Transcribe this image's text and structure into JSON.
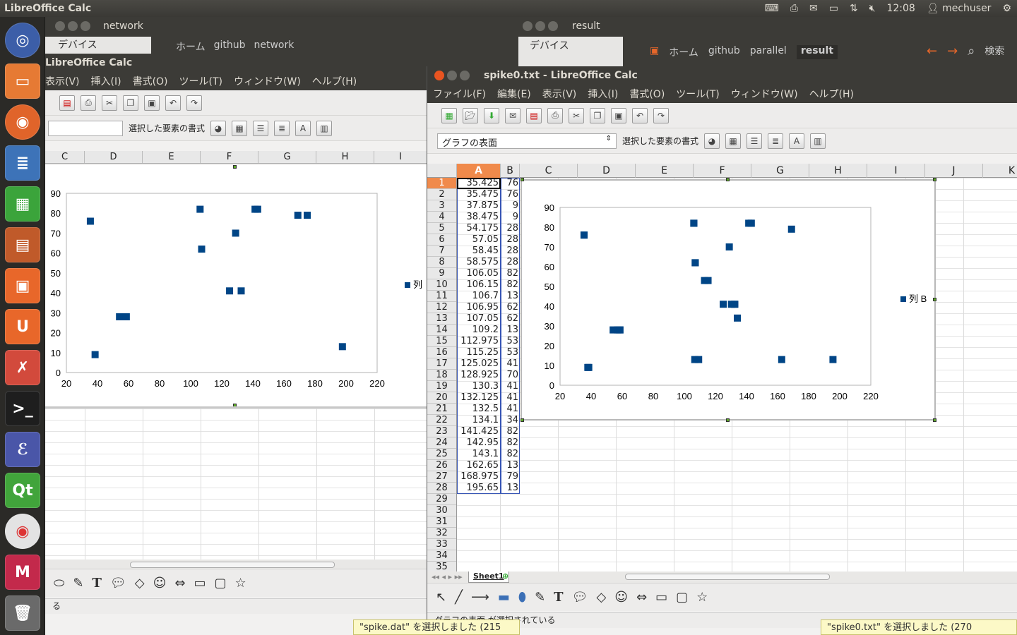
{
  "panel": {
    "app_title": "LibreOffice Calc",
    "time": "12:08",
    "user": "mechuser"
  },
  "bg_windows": {
    "network": {
      "title": "network",
      "sidebar": "デバイス",
      "crumbs": [
        "ホーム",
        "github",
        "network"
      ]
    },
    "result": {
      "title": "result",
      "sidebar": "デバイス",
      "crumbs": [
        "ホーム",
        "github",
        "parallel",
        "result"
      ],
      "search": "検索"
    }
  },
  "left_calc": {
    "title": "LibreOffice Calc",
    "menu": [
      "表示(V)",
      "挿入(I)",
      "書式(O)",
      "ツール(T)",
      "ウィンドウ(W)",
      "ヘルプ(H)"
    ],
    "format_label": "選択した要素の書式",
    "columns": [
      "C",
      "D",
      "E",
      "F",
      "G",
      "H",
      "I"
    ],
    "legend": "列",
    "status": "る"
  },
  "main_calc": {
    "title": "spike0.txt - LibreOffice Calc",
    "menu": [
      "ファイル(F)",
      "編集(E)",
      "表示(V)",
      "挿入(I)",
      "書式(O)",
      "ツール(T)",
      "ウィンドウ(W)",
      "ヘルプ(H)"
    ],
    "element_combo": "グラフの表面",
    "format_label": "選択した要素の書式",
    "columns": [
      "A",
      "B",
      "C",
      "D",
      "E",
      "F",
      "G",
      "H",
      "I",
      "J",
      "K"
    ],
    "sheet_tab": "Sheet1",
    "status": "グラフの表面 が選択されている",
    "legend": "列 B"
  },
  "sheet_rows": [
    {
      "n": "1",
      "a": "35.425",
      "b": "76"
    },
    {
      "n": "2",
      "a": "35.475",
      "b": "76"
    },
    {
      "n": "3",
      "a": "37.875",
      "b": "9"
    },
    {
      "n": "4",
      "a": "38.475",
      "b": "9"
    },
    {
      "n": "5",
      "a": "54.175",
      "b": "28"
    },
    {
      "n": "6",
      "a": "57.05",
      "b": "28"
    },
    {
      "n": "7",
      "a": "58.45",
      "b": "28"
    },
    {
      "n": "8",
      "a": "58.575",
      "b": "28"
    },
    {
      "n": "9",
      "a": "106.05",
      "b": "82"
    },
    {
      "n": "10",
      "a": "106.15",
      "b": "82"
    },
    {
      "n": "11",
      "a": "106.7",
      "b": "13"
    },
    {
      "n": "12",
      "a": "106.95",
      "b": "62"
    },
    {
      "n": "13",
      "a": "107.05",
      "b": "62"
    },
    {
      "n": "14",
      "a": "109.2",
      "b": "13"
    },
    {
      "n": "15",
      "a": "112.975",
      "b": "53"
    },
    {
      "n": "16",
      "a": "115.25",
      "b": "53"
    },
    {
      "n": "17",
      "a": "125.025",
      "b": "41"
    },
    {
      "n": "18",
      "a": "128.925",
      "b": "70"
    },
    {
      "n": "19",
      "a": "130.3",
      "b": "41"
    },
    {
      "n": "20",
      "a": "132.125",
      "b": "41"
    },
    {
      "n": "21",
      "a": "132.5",
      "b": "41"
    },
    {
      "n": "22",
      "a": "134.1",
      "b": "34"
    },
    {
      "n": "23",
      "a": "141.425",
      "b": "82"
    },
    {
      "n": "24",
      "a": "142.95",
      "b": "82"
    },
    {
      "n": "25",
      "a": "143.1",
      "b": "82"
    },
    {
      "n": "26",
      "a": "162.65",
      "b": "13"
    },
    {
      "n": "27",
      "a": "168.975",
      "b": "79"
    },
    {
      "n": "28",
      "a": "195.65",
      "b": "13"
    }
  ],
  "empty_rows": [
    "29",
    "30",
    "31",
    "32",
    "33",
    "34",
    "35"
  ],
  "notifications": {
    "left": "\"spike.dat\" を選択しました (215 ",
    "right": "\"spike0.txt\" を選択しました (270"
  },
  "chart_data": [
    {
      "type": "scatter",
      "x": [
        35.425,
        38.475,
        54.175,
        58.575,
        106.05,
        107.05,
        125.025,
        128.925,
        132.5,
        141.425,
        143.1,
        168.975,
        175,
        197.65
      ],
      "y": [
        76,
        9,
        28,
        28,
        82,
        62,
        41,
        70,
        41,
        82,
        82,
        79,
        79,
        13
      ],
      "xlim": [
        20,
        220
      ],
      "ylim": [
        0,
        90
      ],
      "xticks": [
        "20",
        "40",
        "60",
        "80",
        "100",
        "120",
        "140",
        "160",
        "180",
        "200",
        "220"
      ],
      "yticks": [
        "0",
        "10",
        "20",
        "30",
        "40",
        "50",
        "60",
        "70",
        "80",
        "90"
      ],
      "legend": "列",
      "color": "#004586"
    },
    {
      "type": "scatter",
      "x": [
        35.425,
        35.475,
        37.875,
        38.475,
        54.175,
        57.05,
        58.45,
        58.575,
        106.05,
        106.15,
        106.7,
        106.95,
        107.05,
        109.2,
        112.975,
        115.25,
        125.025,
        128.925,
        130.3,
        132.125,
        132.5,
        134.1,
        141.425,
        142.95,
        143.1,
        162.65,
        168.975,
        195.65
      ],
      "y": [
        76,
        76,
        9,
        9,
        28,
        28,
        28,
        28,
        82,
        82,
        13,
        62,
        62,
        13,
        53,
        53,
        41,
        70,
        41,
        41,
        41,
        34,
        82,
        82,
        82,
        13,
        79,
        13
      ],
      "xlim": [
        20,
        220
      ],
      "ylim": [
        0,
        90
      ],
      "xticks": [
        "20",
        "40",
        "60",
        "80",
        "100",
        "120",
        "140",
        "160",
        "180",
        "200",
        "220"
      ],
      "yticks": [
        "0",
        "10",
        "20",
        "30",
        "40",
        "50",
        "60",
        "70",
        "80",
        "90"
      ],
      "legend": "列 B",
      "color": "#004586"
    }
  ]
}
